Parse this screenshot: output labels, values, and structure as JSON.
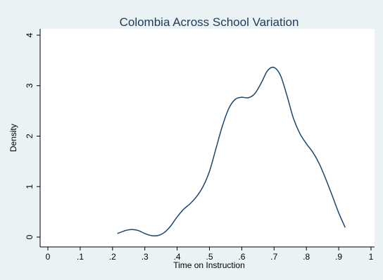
{
  "chart_data": {
    "type": "line",
    "title": "Colombia Across School Variation",
    "xlabel": "Time on Instruction",
    "ylabel": "Density",
    "xlim": [
      0,
      1
    ],
    "ylim": [
      0,
      4
    ],
    "x_ticks": [
      {
        "value": 0,
        "label": "0"
      },
      {
        "value": 0.1,
        "label": ".1"
      },
      {
        "value": 0.2,
        "label": ".2"
      },
      {
        "value": 0.3,
        "label": ".3"
      },
      {
        "value": 0.4,
        "label": ".4"
      },
      {
        "value": 0.5,
        "label": ".5"
      },
      {
        "value": 0.6,
        "label": ".6"
      },
      {
        "value": 0.7,
        "label": ".7"
      },
      {
        "value": 0.8,
        "label": ".8"
      },
      {
        "value": 0.9,
        "label": ".9"
      },
      {
        "value": 1,
        "label": "1"
      }
    ],
    "y_ticks": [
      {
        "value": 0,
        "label": "0"
      },
      {
        "value": 1,
        "label": "1"
      },
      {
        "value": 2,
        "label": "2"
      },
      {
        "value": 3,
        "label": "3"
      },
      {
        "value": 4,
        "label": "4"
      }
    ],
    "grid": false,
    "series": [
      {
        "color": "#1a476f",
        "x": [
          0.215,
          0.24,
          0.26,
          0.28,
          0.3,
          0.32,
          0.34,
          0.36,
          0.38,
          0.4,
          0.42,
          0.44,
          0.46,
          0.48,
          0.5,
          0.52,
          0.54,
          0.56,
          0.58,
          0.6,
          0.62,
          0.64,
          0.66,
          0.68,
          0.7,
          0.72,
          0.74,
          0.76,
          0.78,
          0.8,
          0.82,
          0.84,
          0.86,
          0.88,
          0.9,
          0.92
        ],
        "y": [
          0.07,
          0.13,
          0.15,
          0.13,
          0.07,
          0.03,
          0.03,
          0.09,
          0.22,
          0.4,
          0.55,
          0.66,
          0.8,
          1.0,
          1.3,
          1.75,
          2.2,
          2.55,
          2.73,
          2.77,
          2.76,
          2.84,
          3.05,
          3.3,
          3.36,
          3.2,
          2.8,
          2.35,
          2.05,
          1.85,
          1.68,
          1.45,
          1.15,
          0.82,
          0.48,
          0.19
        ]
      }
    ]
  }
}
